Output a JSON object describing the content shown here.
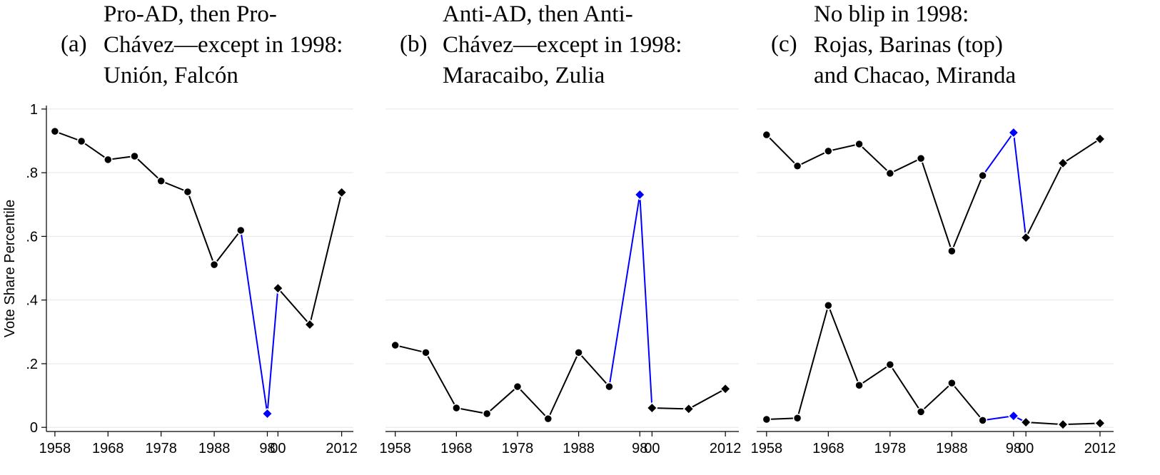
{
  "chart_data": [
    {
      "type": "line",
      "panel_label": "(a)",
      "title": [
        "Pro-AD, then Pro-",
        "Chávez—except in 1998:",
        "Unión, Falcón"
      ],
      "ylabel": "Vote Share Percentile",
      "x": [
        1958,
        1963,
        1968,
        1973,
        1978,
        1983,
        1988,
        1993,
        1998,
        2000,
        2006,
        2012
      ],
      "markers": [
        "circle",
        "circle",
        "circle",
        "circle",
        "circle",
        "circle",
        "circle",
        "circle",
        "diamond",
        "diamond",
        "diamond",
        "diamond"
      ],
      "highlight": {
        "x": 1998,
        "color": "#0000ff"
      },
      "series": [
        {
          "color": "#000000",
          "values": [
            0.93,
            0.899,
            0.841,
            0.852,
            0.774,
            0.74,
            0.511,
            0.619,
            0.043,
            0.437,
            0.323,
            0.738
          ]
        }
      ],
      "xlim": [
        1956.4,
        2014.2
      ],
      "xticks": [
        1958,
        1968,
        1978,
        1988,
        {
          "value": 1998,
          "label": "98"
        },
        {
          "value": 2000,
          "label": "00"
        },
        2012
      ],
      "ylim": [
        -0.013,
        1.011
      ],
      "yticks": [
        0,
        {
          "value": 0.2,
          "label": ".2"
        },
        {
          "value": 0.4,
          "label": ".4"
        },
        {
          "value": 0.6,
          "label": ".6"
        },
        {
          "value": 0.8,
          "label": ".8"
        },
        1
      ],
      "ytick_labels": true,
      "grid": true
    },
    {
      "type": "line",
      "panel_label": "(b)",
      "title": [
        "Anti-AD, then Anti-",
        "Chávez—except in 1998:",
        "Maracaibo, Zulia"
      ],
      "x": [
        1958,
        1963,
        1968,
        1973,
        1978,
        1983,
        1988,
        1993,
        1998,
        2000,
        2006,
        2012
      ],
      "markers": [
        "circle",
        "circle",
        "circle",
        "circle",
        "circle",
        "circle",
        "circle",
        "circle",
        "diamond",
        "diamond",
        "diamond",
        "diamond"
      ],
      "highlight": {
        "x": 1998,
        "color": "#0000ff"
      },
      "series": [
        {
          "color": "#000000",
          "values": [
            0.258,
            0.235,
            0.061,
            0.043,
            0.128,
            0.027,
            0.235,
            0.128,
            0.731,
            0.061,
            0.058,
            0.121
          ]
        }
      ],
      "xlim": [
        1956.4,
        2014.2
      ],
      "xticks": [
        1958,
        1968,
        1978,
        1988,
        {
          "value": 1998,
          "label": "98"
        },
        {
          "value": 2000,
          "label": "00"
        },
        2012
      ],
      "ylim": [
        -0.013,
        1.011
      ],
      "yticks": [
        0,
        0.2,
        0.4,
        0.6,
        0.8,
        1
      ],
      "ytick_labels": false,
      "grid": true
    },
    {
      "type": "line",
      "panel_label": "(c)",
      "title": [
        "No blip in 1998:",
        "Rojas, Barinas (top)",
        "and Chacao, Miranda"
      ],
      "x": [
        1958,
        1963,
        1968,
        1973,
        1978,
        1983,
        1988,
        1993,
        1998,
        2000,
        2006,
        2012
      ],
      "markers": [
        "circle",
        "circle",
        "circle",
        "circle",
        "circle",
        "circle",
        "circle",
        "circle",
        "diamond",
        "diamond",
        "diamond",
        "diamond"
      ],
      "highlight": {
        "x": 1998,
        "color": "#0000ff"
      },
      "series": [
        {
          "color": "#000000",
          "values": [
            0.919,
            0.821,
            0.868,
            0.89,
            0.798,
            0.845,
            0.554,
            0.791,
            0.926,
            0.596,
            0.83,
            0.906
          ]
        },
        {
          "color": "#000000",
          "values": [
            0.025,
            0.029,
            0.383,
            0.132,
            0.197,
            0.049,
            0.139,
            0.022,
            0.036,
            0.016,
            0.009,
            0.013
          ]
        }
      ],
      "xlim": [
        1956.4,
        2014.2
      ],
      "xticks": [
        1958,
        1968,
        1978,
        1988,
        {
          "value": 1998,
          "label": "98"
        },
        {
          "value": 2000,
          "label": "00"
        },
        2012
      ],
      "ylim": [
        -0.013,
        1.011
      ],
      "yticks": [
        0,
        0.2,
        0.4,
        0.6,
        0.8,
        1
      ],
      "ytick_labels": false,
      "grid": true
    }
  ]
}
